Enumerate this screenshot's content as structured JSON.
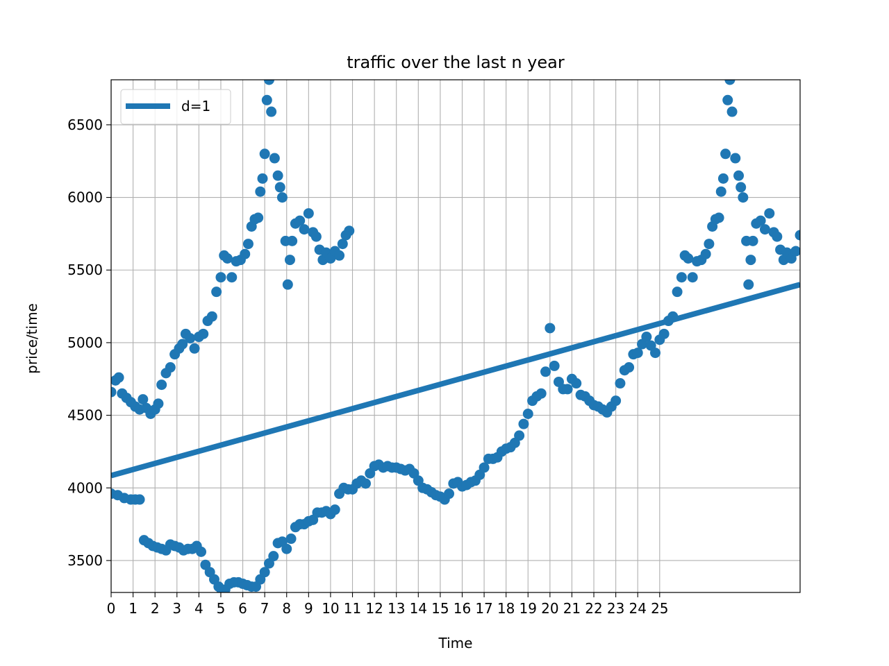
{
  "chart_data": {
    "type": "scatter",
    "title": "traffic over the last n year",
    "xlabel": "Time",
    "ylabel": "price/time",
    "xlim": [
      0,
      31.4
    ],
    "ylim": [
      3280,
      6810
    ],
    "grid": true,
    "x_ticks": [
      0,
      1,
      2,
      3,
      4,
      5,
      6,
      7,
      8,
      9,
      10,
      11,
      12,
      13,
      14,
      15,
      16,
      17,
      18,
      19,
      20,
      21,
      22,
      23,
      24,
      25
    ],
    "x_tick_labels": [
      "0",
      "1",
      "2",
      "3",
      "4",
      "5",
      "6",
      "7",
      "8",
      "9",
      "10",
      "11",
      "12",
      "13",
      "14",
      "15",
      "16",
      "17",
      "18",
      "19",
      "20",
      "21",
      "22",
      "23",
      "24",
      "25"
    ],
    "y_ticks": [
      3500,
      4000,
      4500,
      5000,
      5500,
      6000,
      6500
    ],
    "y_tick_labels": [
      "3500",
      "4000",
      "4500",
      "5000",
      "5500",
      "6000",
      "6500"
    ],
    "legend": {
      "placement": "top-left",
      "entries": [
        "d=1"
      ]
    },
    "color": "#1f77b4",
    "fit_line": {
      "name": "d=1",
      "x": [
        0,
        31.4
      ],
      "y": [
        4085,
        5400
      ]
    },
    "series": [
      {
        "points": [
          [
            0.0,
            4660
          ],
          [
            0.2,
            4740
          ],
          [
            0.35,
            4760
          ],
          [
            0.5,
            4650
          ],
          [
            0.7,
            4620
          ],
          [
            0.9,
            4590
          ],
          [
            1.1,
            4560
          ],
          [
            1.3,
            4540
          ],
          [
            1.45,
            4610
          ],
          [
            1.6,
            4550
          ],
          [
            1.8,
            4510
          ],
          [
            2.0,
            4540
          ],
          [
            2.15,
            4580
          ],
          [
            2.3,
            4710
          ],
          [
            2.5,
            4790
          ],
          [
            2.7,
            4830
          ],
          [
            2.9,
            4920
          ],
          [
            3.1,
            4960
          ],
          [
            3.25,
            4990
          ],
          [
            3.4,
            5060
          ],
          [
            3.6,
            5030
          ],
          [
            3.8,
            4960
          ],
          [
            4.0,
            5040
          ],
          [
            4.2,
            5060
          ],
          [
            4.4,
            5150
          ],
          [
            4.6,
            5180
          ],
          [
            4.8,
            5350
          ],
          [
            5.0,
            5450
          ],
          [
            5.15,
            5600
          ],
          [
            5.3,
            5580
          ],
          [
            5.5,
            5450
          ],
          [
            5.7,
            5560
          ],
          [
            5.9,
            5570
          ],
          [
            6.1,
            5610
          ],
          [
            6.25,
            5680
          ],
          [
            6.4,
            5800
          ],
          [
            6.55,
            5850
          ],
          [
            6.7,
            5860
          ],
          [
            6.8,
            6040
          ],
          [
            6.9,
            6130
          ],
          [
            7.0,
            6300
          ],
          [
            7.1,
            6670
          ],
          [
            7.2,
            6810
          ],
          [
            7.3,
            6590
          ],
          [
            7.45,
            6270
          ],
          [
            7.6,
            6150
          ],
          [
            7.7,
            6070
          ],
          [
            7.8,
            6000
          ],
          [
            7.95,
            5700
          ],
          [
            8.05,
            5400
          ],
          [
            8.15,
            5570
          ],
          [
            8.25,
            5700
          ],
          [
            8.4,
            5820
          ],
          [
            8.6,
            5840
          ],
          [
            8.8,
            5780
          ],
          [
            9.0,
            5890
          ],
          [
            9.2,
            5760
          ],
          [
            9.35,
            5730
          ],
          [
            9.5,
            5640
          ],
          [
            9.65,
            5570
          ],
          [
            9.8,
            5620
          ],
          [
            10.0,
            5580
          ],
          [
            10.2,
            5630
          ],
          [
            10.4,
            5600
          ],
          [
            10.55,
            5680
          ],
          [
            10.7,
            5740
          ],
          [
            10.85,
            5770
          ],
          [
            0.0,
            3960
          ],
          [
            0.3,
            3950
          ],
          [
            0.6,
            3930
          ],
          [
            0.9,
            3920
          ],
          [
            1.1,
            3920
          ],
          [
            1.3,
            3920
          ],
          [
            1.5,
            3640
          ],
          [
            1.7,
            3620
          ],
          [
            1.9,
            3600
          ],
          [
            2.1,
            3590
          ],
          [
            2.3,
            3580
          ],
          [
            2.5,
            3570
          ],
          [
            2.7,
            3610
          ],
          [
            2.9,
            3600
          ],
          [
            3.1,
            3590
          ],
          [
            3.3,
            3570
          ],
          [
            3.5,
            3580
          ],
          [
            3.7,
            3580
          ],
          [
            3.9,
            3600
          ],
          [
            4.1,
            3560
          ],
          [
            4.3,
            3470
          ],
          [
            4.5,
            3420
          ],
          [
            4.7,
            3370
          ],
          [
            4.9,
            3320
          ],
          [
            5.05,
            3290
          ],
          [
            5.2,
            3300
          ],
          [
            5.4,
            3340
          ],
          [
            5.6,
            3350
          ],
          [
            5.8,
            3350
          ],
          [
            6.0,
            3340
          ],
          [
            6.2,
            3330
          ],
          [
            6.4,
            3320
          ],
          [
            6.6,
            3320
          ],
          [
            6.8,
            3370
          ],
          [
            7.0,
            3420
          ],
          [
            7.2,
            3480
          ],
          [
            7.4,
            3530
          ],
          [
            7.6,
            3620
          ],
          [
            7.8,
            3630
          ],
          [
            8.0,
            3580
          ],
          [
            8.2,
            3650
          ],
          [
            8.4,
            3730
          ],
          [
            8.6,
            3750
          ],
          [
            8.8,
            3750
          ],
          [
            9.0,
            3770
          ],
          [
            9.2,
            3780
          ],
          [
            9.4,
            3830
          ],
          [
            9.6,
            3830
          ],
          [
            9.8,
            3840
          ],
          [
            10.0,
            3820
          ],
          [
            10.2,
            3850
          ],
          [
            10.4,
            3960
          ],
          [
            10.6,
            4000
          ],
          [
            10.8,
            3990
          ],
          [
            11.0,
            3990
          ],
          [
            11.2,
            4030
          ],
          [
            11.4,
            4050
          ],
          [
            11.6,
            4030
          ],
          [
            11.8,
            4100
          ],
          [
            12.0,
            4150
          ],
          [
            12.2,
            4160
          ],
          [
            12.4,
            4140
          ],
          [
            12.6,
            4150
          ],
          [
            12.8,
            4140
          ],
          [
            13.0,
            4140
          ],
          [
            13.2,
            4130
          ],
          [
            13.4,
            4120
          ],
          [
            13.6,
            4130
          ],
          [
            13.8,
            4100
          ],
          [
            14.0,
            4050
          ],
          [
            14.2,
            4000
          ],
          [
            14.4,
            3990
          ],
          [
            14.6,
            3970
          ],
          [
            14.8,
            3950
          ],
          [
            15.0,
            3940
          ],
          [
            15.2,
            3920
          ],
          [
            15.4,
            3960
          ],
          [
            15.6,
            4030
          ],
          [
            15.8,
            4040
          ],
          [
            16.0,
            4010
          ],
          [
            16.2,
            4020
          ],
          [
            16.4,
            4040
          ],
          [
            16.6,
            4050
          ],
          [
            16.8,
            4090
          ],
          [
            17.0,
            4140
          ],
          [
            17.2,
            4200
          ],
          [
            17.4,
            4200
          ],
          [
            17.6,
            4210
          ],
          [
            17.8,
            4250
          ],
          [
            18.0,
            4270
          ],
          [
            18.2,
            4280
          ],
          [
            18.4,
            4310
          ],
          [
            18.6,
            4360
          ],
          [
            18.8,
            4440
          ],
          [
            19.0,
            4510
          ],
          [
            19.2,
            4600
          ],
          [
            19.4,
            4630
          ],
          [
            19.6,
            4650
          ],
          [
            19.8,
            4800
          ],
          [
            20.0,
            5100
          ],
          [
            20.2,
            4840
          ],
          [
            20.4,
            4730
          ],
          [
            20.6,
            4680
          ],
          [
            20.8,
            4680
          ],
          [
            21.0,
            4750
          ],
          [
            21.2,
            4720
          ],
          [
            21.4,
            4640
          ],
          [
            21.6,
            4630
          ],
          [
            21.8,
            4600
          ],
          [
            22.0,
            4570
          ],
          [
            22.2,
            4560
          ],
          [
            22.4,
            4540
          ],
          [
            22.6,
            4520
          ],
          [
            22.8,
            4560
          ],
          [
            23.0,
            4600
          ],
          [
            23.2,
            4720
          ],
          [
            23.4,
            4810
          ],
          [
            23.6,
            4830
          ],
          [
            23.8,
            4920
          ],
          [
            24.0,
            4930
          ],
          [
            24.2,
            4990
          ],
          [
            24.4,
            5040
          ],
          [
            24.6,
            4980
          ],
          [
            24.8,
            4930
          ],
          [
            25.0,
            5020
          ],
          [
            25.2,
            5060
          ],
          [
            25.4,
            5150
          ],
          [
            25.6,
            5180
          ],
          [
            25.8,
            5350
          ],
          [
            26.0,
            5450
          ],
          [
            26.15,
            5600
          ],
          [
            26.3,
            5580
          ],
          [
            26.5,
            5450
          ],
          [
            26.7,
            5560
          ],
          [
            26.9,
            5570
          ],
          [
            27.1,
            5610
          ],
          [
            27.25,
            5680
          ],
          [
            27.4,
            5800
          ],
          [
            27.55,
            5850
          ],
          [
            27.7,
            5860
          ],
          [
            27.8,
            6040
          ],
          [
            27.9,
            6130
          ],
          [
            28.0,
            6300
          ],
          [
            28.1,
            6670
          ],
          [
            28.2,
            6810
          ],
          [
            28.3,
            6590
          ],
          [
            28.45,
            6270
          ],
          [
            28.6,
            6150
          ],
          [
            28.7,
            6070
          ],
          [
            28.8,
            6000
          ],
          [
            28.95,
            5700
          ],
          [
            29.05,
            5400
          ],
          [
            29.15,
            5570
          ],
          [
            29.25,
            5700
          ],
          [
            29.4,
            5820
          ],
          [
            29.6,
            5840
          ],
          [
            29.8,
            5780
          ],
          [
            30.0,
            5890
          ],
          [
            30.2,
            5760
          ],
          [
            30.35,
            5730
          ],
          [
            30.5,
            5640
          ],
          [
            30.65,
            5570
          ],
          [
            30.8,
            5620
          ],
          [
            31.0,
            5580
          ],
          [
            31.2,
            5630
          ],
          [
            31.4,
            5740
          ]
        ]
      }
    ]
  }
}
